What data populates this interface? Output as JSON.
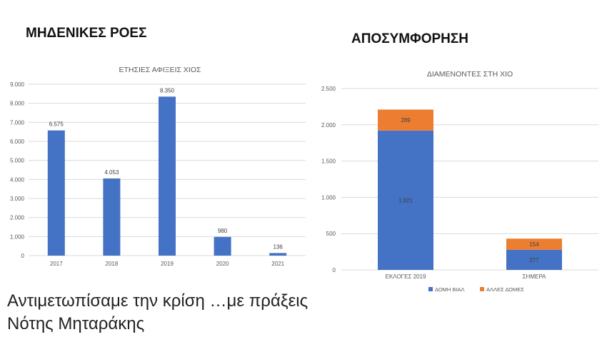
{
  "headings": {
    "left": "ΜΗΔΕΝΙΚΕΣ ΡΟΕΣ",
    "right": "ΑΠΟΣΥΜΦΟΡΗΣΗ"
  },
  "caption": {
    "line1": "Αντιμετωπίσαμε την κρίση …με πράξεις",
    "line2": "Νότης Μηταράκης"
  },
  "chart_data": [
    {
      "type": "bar",
      "title": "ΕΤΗΣΙΕΣ ΑΦΙΞΕΙΣ ΧΙΟΣ",
      "categories": [
        "2017",
        "2018",
        "2019",
        "2020",
        "2021"
      ],
      "values": [
        6575,
        4053,
        8350,
        980,
        136
      ],
      "value_labels": [
        "6.575",
        "4.053",
        "8.350",
        "980",
        "136"
      ],
      "ylim": [
        0,
        9000
      ],
      "yticks": [
        0,
        1000,
        2000,
        3000,
        4000,
        5000,
        6000,
        7000,
        8000,
        9000
      ],
      "ytick_labels": [
        "0",
        "1.000",
        "2.000",
        "3.000",
        "4.000",
        "5.000",
        "6.000",
        "7.000",
        "8.000",
        "9.000"
      ],
      "grid": true,
      "color": "#4472c4"
    },
    {
      "type": "bar",
      "stacked": true,
      "title": "ΔΙΑΜΕΝΟΝΤΕΣ ΣΤΗ ΧΙΟ",
      "categories": [
        "ΕΚΛΟΓΕΣ 2019",
        "ΣΗΜΕΡΑ"
      ],
      "series": [
        {
          "name": "ΔΟΜΗ ΒΙΑΛ",
          "values": [
            1921,
            277
          ],
          "value_labels": [
            "1.921",
            "277"
          ],
          "color": "#4472c4"
        },
        {
          "name": "ΑΛΛΕΣ ΔΟΜΕΣ",
          "values": [
            289,
            154
          ],
          "value_labels": [
            "289",
            "154"
          ],
          "color": "#ed7d31"
        }
      ],
      "ylim": [
        0,
        2500
      ],
      "yticks": [
        0,
        500,
        1000,
        1500,
        2000,
        2500
      ],
      "ytick_labels": [
        "0",
        "500",
        "1.000",
        "1.500",
        "2.000",
        "2.500"
      ],
      "grid": true,
      "legend": "bottom"
    }
  ]
}
